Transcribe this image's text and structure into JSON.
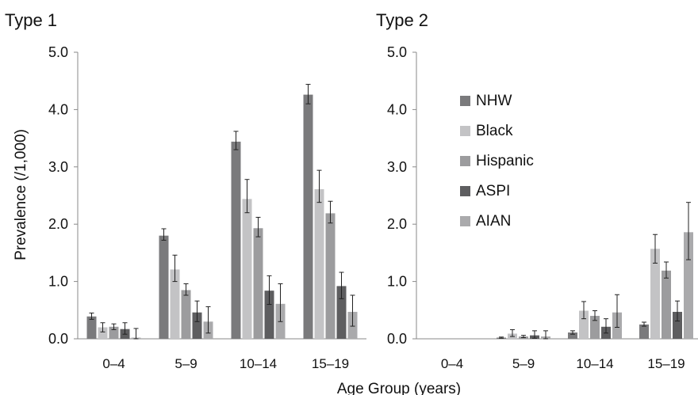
{
  "figure": {
    "xlabel": "Age Group (years)",
    "ylabel": "Prevalence (/1,000)"
  },
  "chart_data": [
    {
      "type": "bar",
      "title": "Type 1",
      "categories": [
        "0–4",
        "5–9",
        "10–14",
        "15–19"
      ],
      "ylim": [
        0,
        5
      ],
      "yticks": [
        "0.0",
        "1.0",
        "2.0",
        "3.0",
        "4.0",
        "5.0"
      ],
      "grid": false,
      "legend": false,
      "series": [
        {
          "name": "NHW",
          "color": "#7a7a7c",
          "values": [
            0.39,
            1.8,
            3.44,
            4.26
          ],
          "err_low": [
            0.34,
            1.72,
            3.3,
            4.1
          ],
          "err_high": [
            0.45,
            1.92,
            3.62,
            4.44
          ]
        },
        {
          "name": "Black",
          "color": "#c3c3c5",
          "values": [
            0.2,
            1.21,
            2.44,
            2.61
          ],
          "err_low": [
            0.12,
            1.0,
            2.2,
            2.38
          ],
          "err_high": [
            0.28,
            1.46,
            2.78,
            2.94
          ]
        },
        {
          "name": "Hispanic",
          "color": "#9c9c9e",
          "values": [
            0.21,
            0.85,
            1.93,
            2.19
          ],
          "err_low": [
            0.16,
            0.76,
            1.78,
            2.02
          ],
          "err_high": [
            0.26,
            0.96,
            2.12,
            2.4
          ]
        },
        {
          "name": "ASPI",
          "color": "#5e5e60",
          "values": [
            0.17,
            0.46,
            0.84,
            0.92
          ],
          "err_low": [
            0.08,
            0.3,
            0.6,
            0.7
          ],
          "err_high": [
            0.28,
            0.66,
            1.1,
            1.16
          ]
        },
        {
          "name": "AIAN",
          "color": "#aaaaac",
          "values": [
            0.02,
            0.3,
            0.61,
            0.47
          ],
          "err_low": [
            0.0,
            0.1,
            0.3,
            0.22
          ],
          "err_high": [
            0.18,
            0.56,
            0.96,
            0.76
          ]
        }
      ]
    },
    {
      "type": "bar",
      "title": "Type 2",
      "categories": [
        "0–4",
        "5–9",
        "10–14",
        "15–19"
      ],
      "ylim": [
        0,
        5
      ],
      "yticks": [
        "0.0",
        "1.0",
        "2.0",
        "3.0",
        "4.0",
        "5.0"
      ],
      "grid": false,
      "legend": true,
      "legend_position": "upper-left",
      "series": [
        {
          "name": "NHW",
          "color": "#7a7a7c",
          "values": [
            0.0,
            0.02,
            0.11,
            0.25
          ],
          "err_low": [
            0.0,
            0.01,
            0.08,
            0.22
          ],
          "err_high": [
            0.0,
            0.03,
            0.14,
            0.29
          ]
        },
        {
          "name": "Black",
          "color": "#c3c3c5",
          "values": [
            0.0,
            0.09,
            0.49,
            1.57
          ],
          "err_low": [
            0.0,
            0.04,
            0.35,
            1.32
          ],
          "err_high": [
            0.0,
            0.16,
            0.65,
            1.82
          ]
        },
        {
          "name": "Hispanic",
          "color": "#9c9c9e",
          "values": [
            0.0,
            0.04,
            0.4,
            1.19
          ],
          "err_low": [
            0.0,
            0.02,
            0.32,
            1.06
          ],
          "err_high": [
            0.0,
            0.06,
            0.49,
            1.34
          ]
        },
        {
          "name": "ASPI",
          "color": "#5e5e60",
          "values": [
            0.0,
            0.06,
            0.21,
            0.47
          ],
          "err_low": [
            0.0,
            0.01,
            0.1,
            0.31
          ],
          "err_high": [
            0.0,
            0.14,
            0.35,
            0.66
          ]
        },
        {
          "name": "AIAN",
          "color": "#aaaaac",
          "values": [
            0.0,
            0.04,
            0.46,
            1.86
          ],
          "err_low": [
            0.0,
            0.0,
            0.2,
            1.38
          ],
          "err_high": [
            0.0,
            0.14,
            0.77,
            2.38
          ]
        }
      ]
    }
  ]
}
